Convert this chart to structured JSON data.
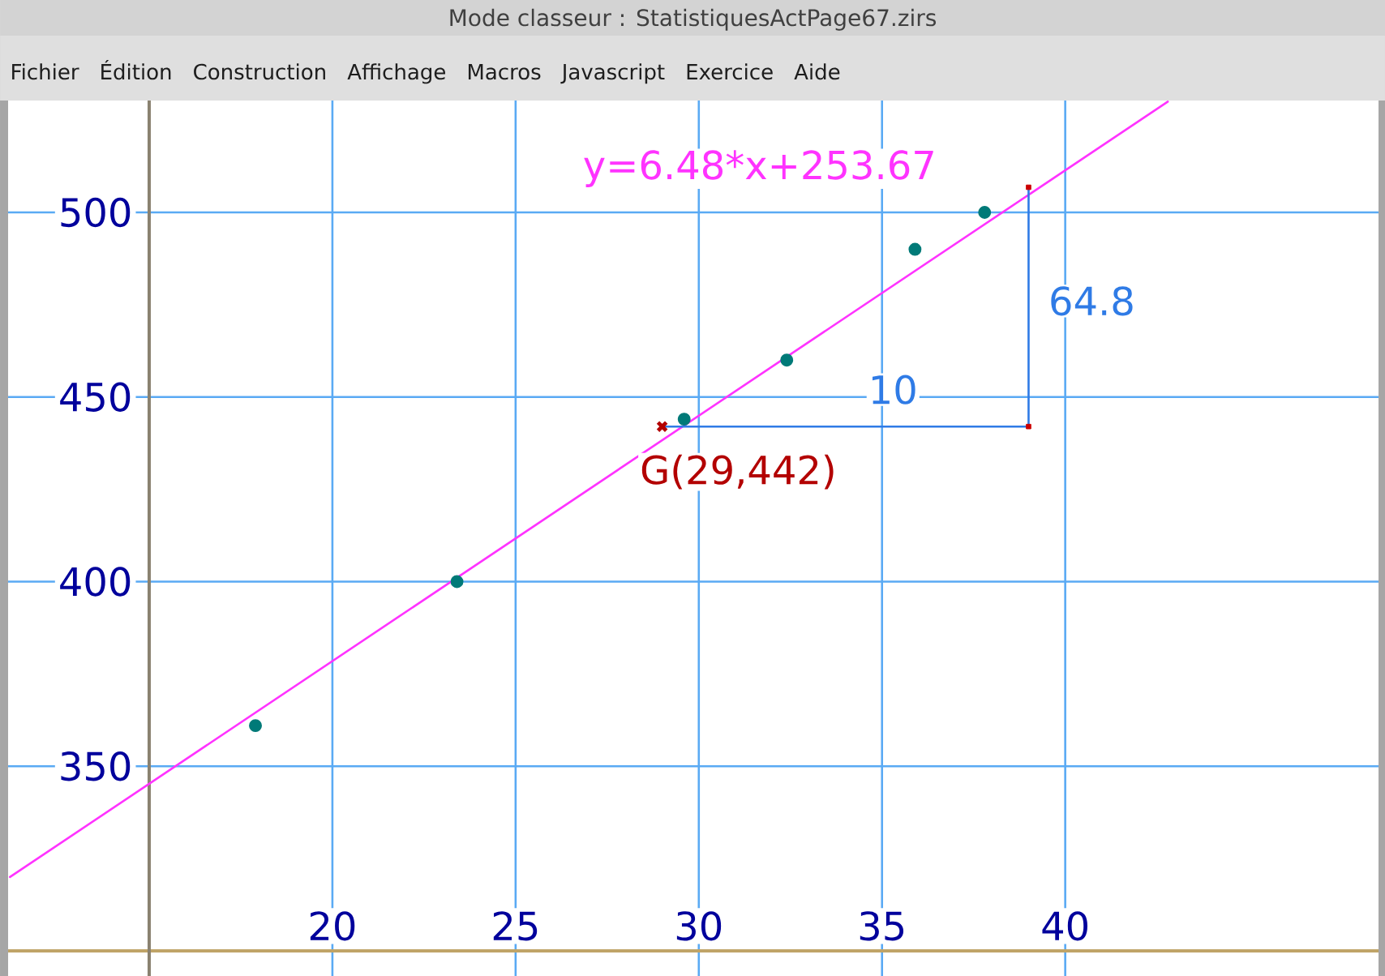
{
  "chart_data": {
    "type": "scatter",
    "title": "Mode classeur : StatistiquesActPage67.zirs",
    "series": [
      {
        "color": "#007a78",
        "marker": "circle",
        "x": [
          17.9,
          23.4,
          29.6,
          32.4,
          35.9,
          37.8
        ],
        "values": [
          361,
          400,
          444,
          460,
          490,
          500
        ]
      },
      {
        "type": "line",
        "name": "y=6.48*x+253.67",
        "color": "#ff33ff",
        "x": [
          11.2,
          42.8
        ],
        "values": [
          320,
          530
        ]
      },
      {
        "type": "line",
        "color": "#2f7be6",
        "x": [
          29,
          39,
          39
        ],
        "values": [
          442,
          442,
          506.8
        ]
      },
      {
        "color": "#cc0000",
        "marker": "square",
        "x": [
          39,
          39
        ],
        "values": [
          442,
          506.8
        ]
      },
      {
        "color": "#b30000",
        "marker": "cross",
        "x": [
          29
        ],
        "values": [
          442
        ]
      }
    ],
    "xlim": [
      11.15,
      48.55
    ],
    "ylim": [
      293.2,
      530.3
    ],
    "xticks": [
      20,
      25,
      30,
      35,
      40
    ],
    "yticks": [
      350,
      400,
      450,
      500
    ],
    "grid": true,
    "annotations": [
      "Fichier",
      "Édition",
      "Construction",
      "Affichage",
      "Macros",
      "Javascript",
      "Exercice",
      "Aide",
      {
        "text": "G(29,442)",
        "x": 29,
        "y": 442
      },
      {
        "text": "10",
        "x": 35.3,
        "y": 442
      },
      {
        "text": "64.8",
        "x": 39,
        "y": 476
      }
    ]
  }
}
